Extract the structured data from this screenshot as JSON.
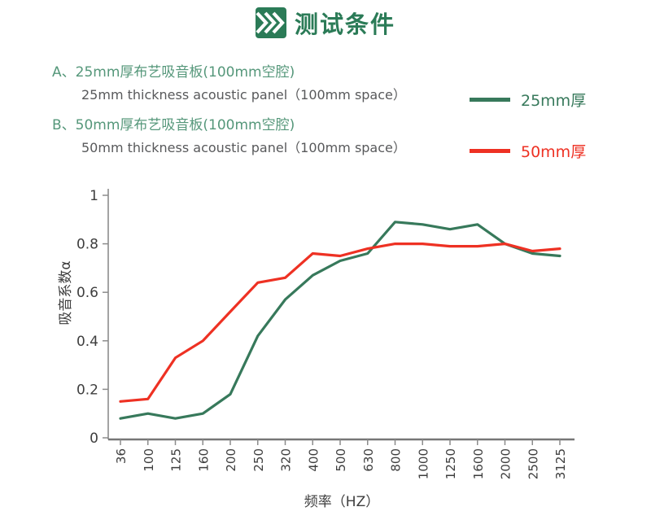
{
  "header": {
    "title": "测试条件"
  },
  "conditions": [
    {
      "zh": "A、25mm厚布艺吸音板(100mm空腔)",
      "en": "25mm thickness acoustic panel（100mm space）"
    },
    {
      "zh": "B、50mm厚布艺吸音板(100mm空腔)",
      "en": "50mm thickness acoustic panel（100mm space）"
    }
  ],
  "legend": [
    {
      "label": "25mm厚",
      "color": "#37795B"
    },
    {
      "label": "50mm厚",
      "color": "#EE3123"
    }
  ],
  "colors": {
    "title_green": "#2B7B57",
    "text_green": "#55977A",
    "text_gray": "#58595B",
    "line_green": "#37795B",
    "line_red": "#EE3123",
    "axis_gray": "#8C8C8C",
    "label_gray": "#3E3E3E"
  },
  "chart_data": {
    "type": "line",
    "categories": [
      "36",
      "100",
      "125",
      "160",
      "200",
      "250",
      "320",
      "400",
      "500",
      "630",
      "800",
      "1000",
      "1250",
      "1600",
      "2000",
      "2500",
      "3125"
    ],
    "series": [
      {
        "name": "25mm厚",
        "color": "#37795B",
        "values": [
          0.08,
          0.1,
          0.08,
          0.1,
          0.18,
          0.42,
          0.57,
          0.67,
          0.73,
          0.76,
          0.89,
          0.88,
          0.86,
          0.88,
          0.8,
          0.76,
          0.75
        ]
      },
      {
        "name": "50mm厚",
        "color": "#EE3123",
        "values": [
          0.15,
          0.16,
          0.33,
          0.4,
          0.52,
          0.64,
          0.66,
          0.76,
          0.75,
          0.78,
          0.8,
          0.8,
          0.79,
          0.79,
          0.8,
          0.77,
          0.78
        ]
      }
    ],
    "title": "",
    "xlabel": "频率（HZ）",
    "ylabel": "吸音系数α",
    "ylim": [
      0,
      1
    ],
    "yticks": [
      0,
      0.2,
      0.4,
      0.6,
      0.8,
      1
    ],
    "grid": false,
    "x_labels_rotated": true,
    "legend_position": "top-right"
  }
}
